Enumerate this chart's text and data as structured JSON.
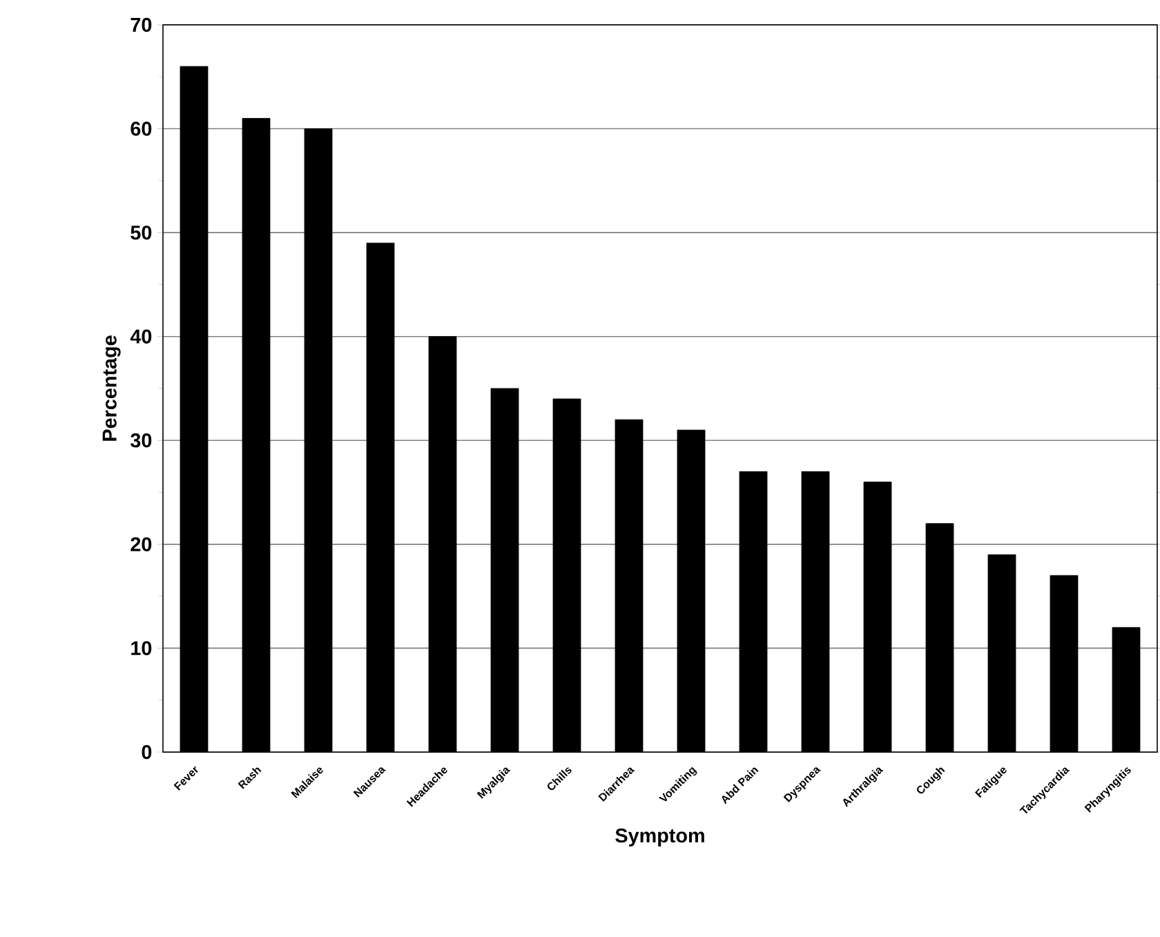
{
  "chart_data": {
    "type": "bar",
    "xlabel": "Symptom",
    "ylabel": "Percentage",
    "categories": [
      "Fever",
      "Rash",
      "Malaise",
      "Nausea",
      "Headache",
      "Myalgia",
      "Chills",
      "Diarrhea",
      "Vomiting",
      "Abd Pain",
      "Dyspnea",
      "Arthralgia",
      "Cough",
      "Fatigue",
      "Tachycardia",
      "Pharyngitis"
    ],
    "values": [
      66,
      61,
      60,
      49,
      40,
      35,
      34,
      32,
      31,
      27,
      27,
      26,
      22,
      19,
      17,
      12
    ],
    "color": "#000000",
    "ylim": [
      0,
      70
    ],
    "yticks": [
      0,
      10,
      20,
      30,
      40,
      50,
      60,
      70
    ],
    "grid": "y"
  }
}
